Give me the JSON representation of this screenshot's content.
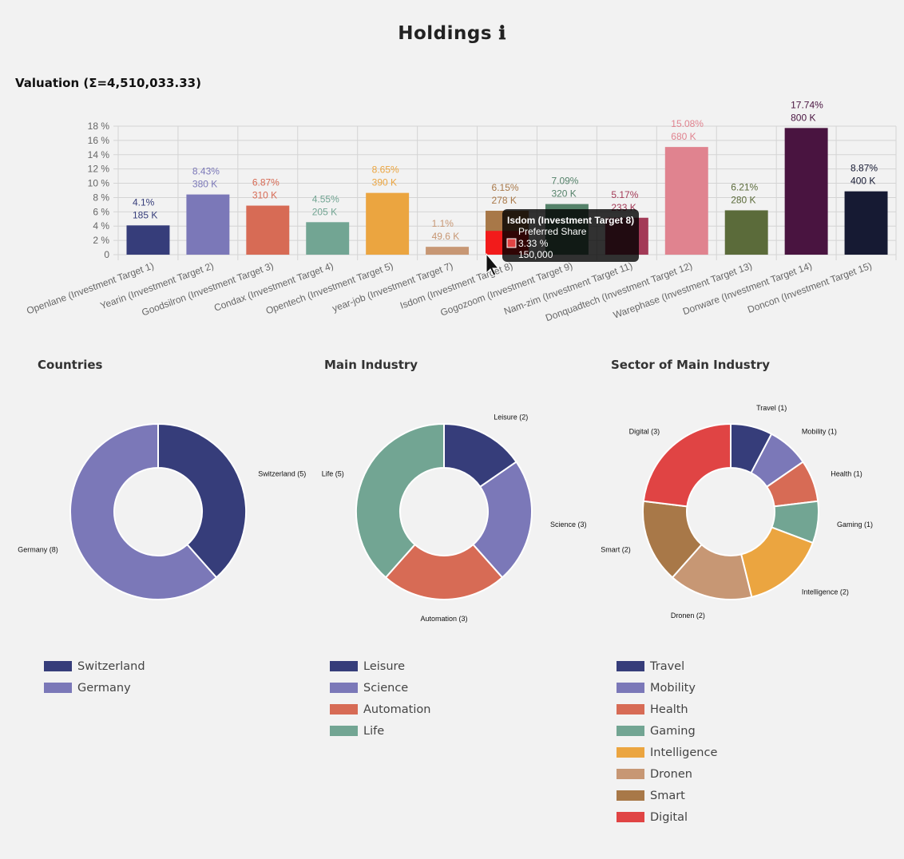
{
  "page": {
    "title": "Holdings",
    "info_icon": "info-icon"
  },
  "chart_data": [
    {
      "type": "bar",
      "title": "Valuation (Σ=4,510,033.33)",
      "ylim": [
        0,
        18
      ],
      "yticks": [
        "0",
        "2 %",
        "4 %",
        "6 %",
        "8 %",
        "10 %",
        "12 %",
        "14 %",
        "16 %",
        "18 %"
      ],
      "grid": true,
      "categories": [
        "Openlane (Investment Target 1)",
        "Yearin (Investment Target 2)",
        "Goodsilron (Investment Target 3)",
        "Condax (Investment Target 4)",
        "Opentech (Investment Target 5)",
        "year-job (Investment Target 7)",
        "Isdom (Investment Target 8)",
        "Gogozoom (Investment Target 9)",
        "Nam-zim (Investment Target 11)",
        "Donquadtech (Investment Target 12)",
        "Warephase (Investment Target 13)",
        "Donware (Investment Target 14)",
        "Doncon (Investment Target 15)"
      ],
      "values": [
        4.1,
        8.43,
        6.87,
        4.55,
        8.65,
        1.1,
        6.15,
        7.09,
        5.17,
        15.08,
        6.21,
        17.74,
        8.87
      ],
      "pct_labels": [
        "4.1%",
        "8.43%",
        "6.87%",
        "4.55%",
        "8.65%",
        "1.1%",
        "6.15%",
        "7.09%",
        "5.17%",
        "15.08%",
        "6.21%",
        "17.74%",
        "8.87%"
      ],
      "amount_labels": [
        "185 K",
        "380 K",
        "310 K",
        "205 K",
        "390 K",
        "49.6 K",
        "278 K",
        "320 K",
        "233 K",
        "680 K",
        "280 K",
        "800 K",
        "400 K"
      ],
      "colors": [
        "#363d7a",
        "#7b78b8",
        "#d76b55",
        "#72a593",
        "#eba540",
        "#c79774",
        "#a87848",
        "#55826a",
        "#a33a57",
        "#e0838f",
        "#5b6b3a",
        "#491440",
        "#161a33"
      ],
      "stacked_segment": {
        "index": 6,
        "name": "Preferred Share",
        "value": 3.33,
        "color": "#f21b1b"
      },
      "tooltip": {
        "title": "Isdom (Investment Target 8)",
        "series": "Preferred Share",
        "value": "3.33 %",
        "amount": "150,000",
        "swatch": "#e04444"
      }
    },
    {
      "type": "pie",
      "title": "Countries",
      "labels": [
        "Switzerland",
        "Germany"
      ],
      "values": [
        5,
        8
      ],
      "colors": [
        "#363d7a",
        "#7b78b8"
      ]
    },
    {
      "type": "pie",
      "title": "Main Industry",
      "labels": [
        "Leisure",
        "Science",
        "Automation",
        "Life"
      ],
      "values": [
        2,
        3,
        3,
        5
      ],
      "colors": [
        "#363d7a",
        "#7b78b8",
        "#d76b55",
        "#72a593"
      ]
    },
    {
      "type": "pie",
      "title": "Sector of Main Industry",
      "labels": [
        "Travel",
        "Mobility",
        "Health",
        "Gaming",
        "Intelligence",
        "Dronen",
        "Smart",
        "Digital"
      ],
      "values": [
        1,
        1,
        1,
        1,
        2,
        2,
        2,
        3
      ],
      "colors": [
        "#363d7a",
        "#7b78b8",
        "#d76b55",
        "#72a593",
        "#eba540",
        "#c79774",
        "#a87848",
        "#e04444"
      ]
    }
  ]
}
